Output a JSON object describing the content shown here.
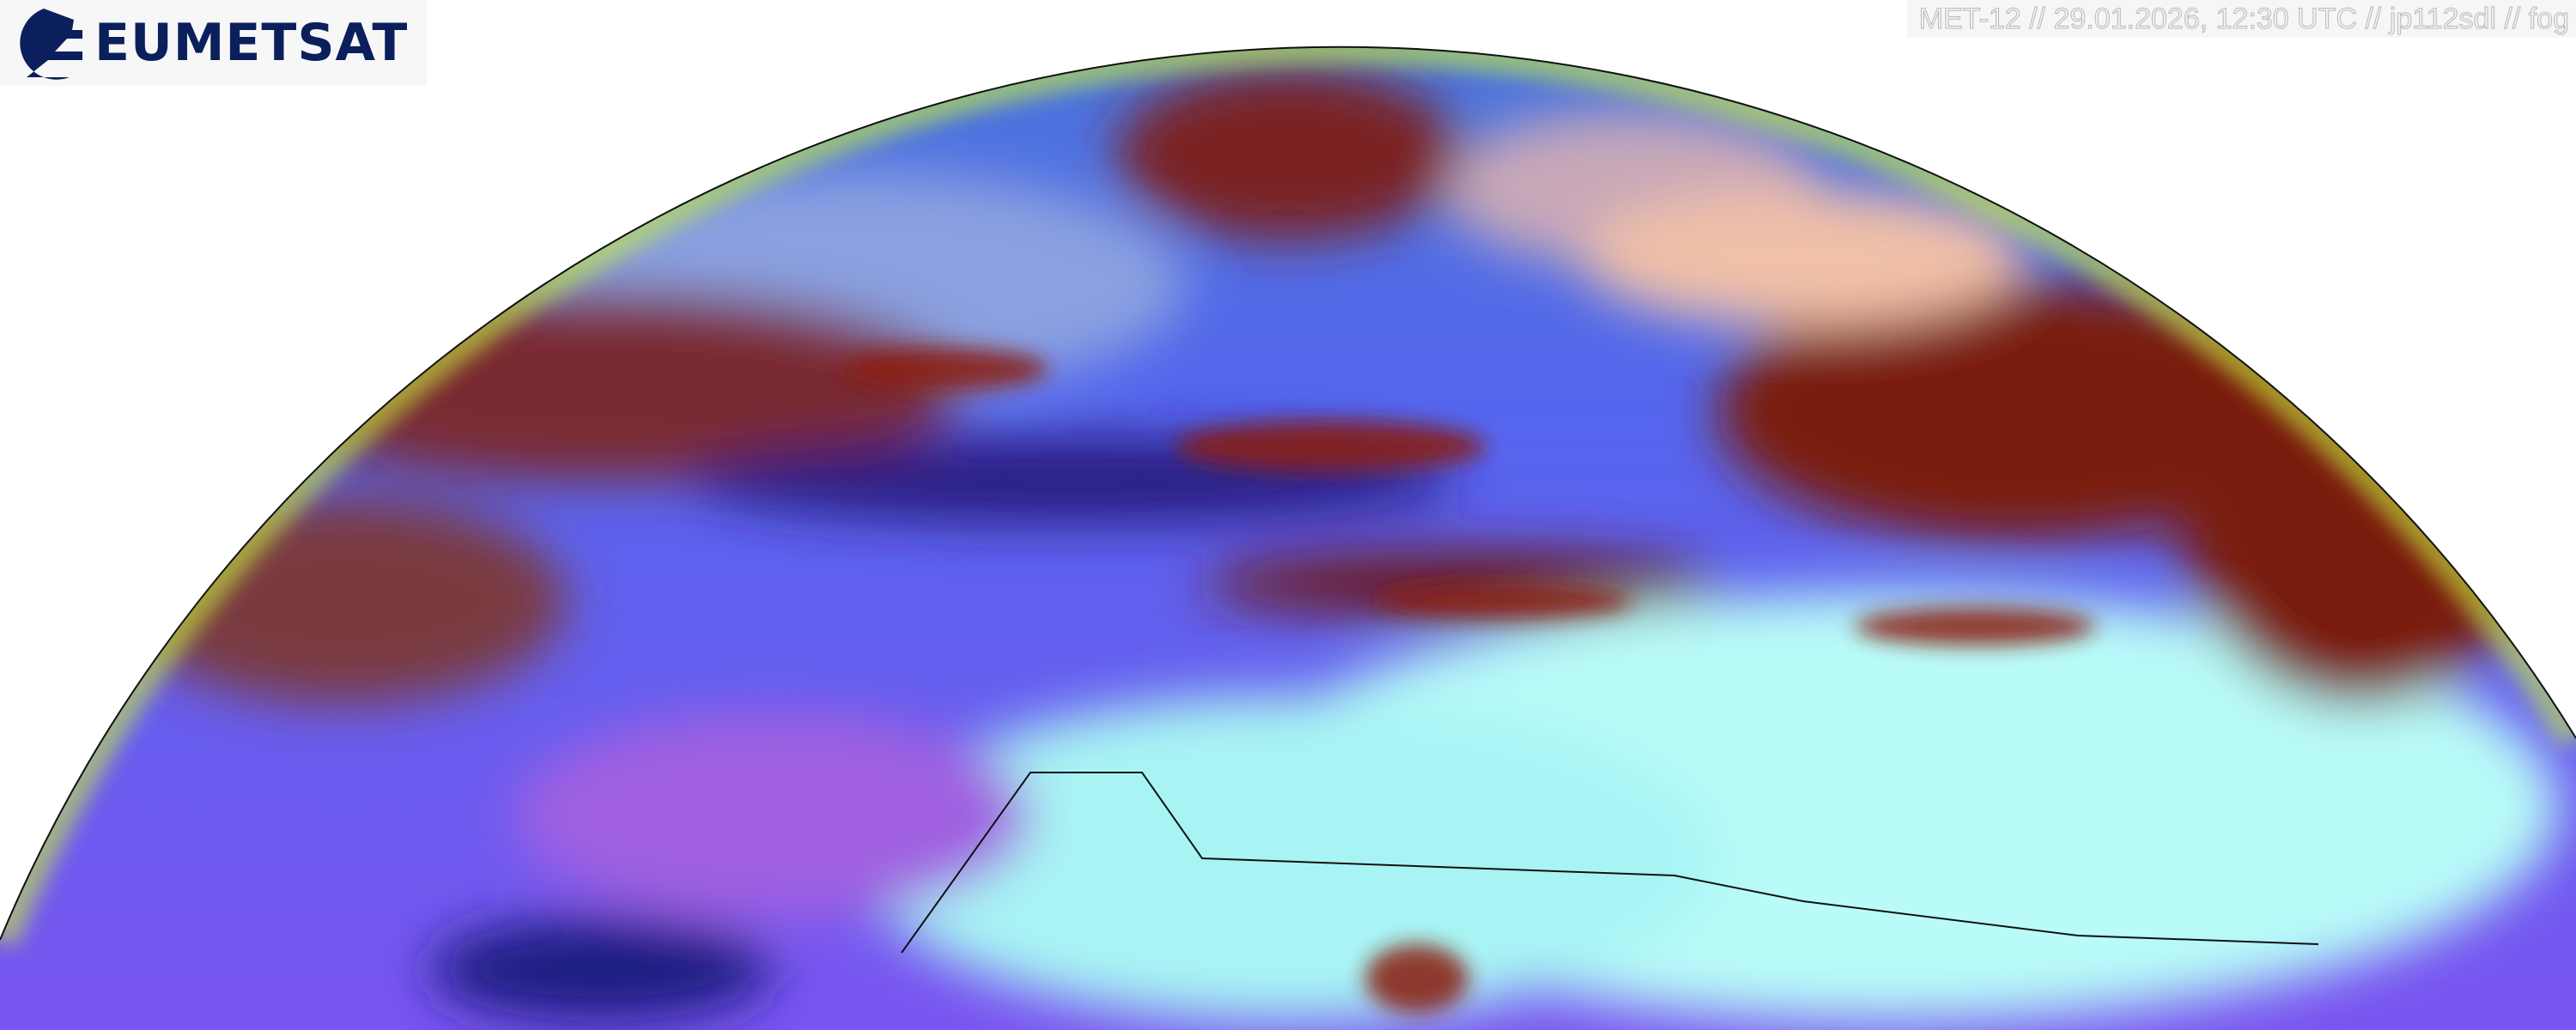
{
  "logo": {
    "text": "EUMETSAT",
    "color": "#0b1f5c"
  },
  "caption": "MET-12 // 29.01.2026, 12:30 UTC // jp112sdl // fog",
  "image": {
    "subject": "satellite-earth-disk",
    "colors": {
      "ocean": "#5a5cf0",
      "cloud_red": "#8a1e10",
      "desert": "#b8fbf8",
      "limb": "#c8f040"
    }
  }
}
